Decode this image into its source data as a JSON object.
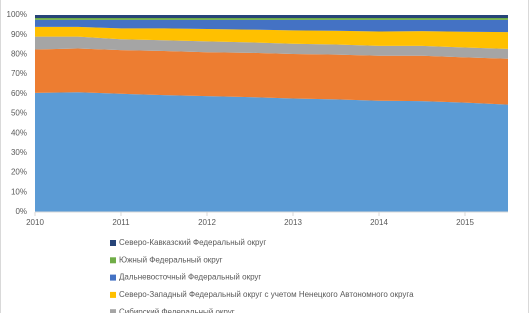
{
  "chart_data": {
    "type": "stacked_area",
    "x": [
      2010,
      2010.5,
      2011,
      2011.5,
      2012,
      2012.5,
      2013,
      2013.5,
      2014,
      2014.5,
      2015,
      2015.5
    ],
    "xlim": [
      2010,
      2015.5
    ],
    "xticks": [
      2010,
      2011,
      2012,
      2013,
      2014,
      2015
    ],
    "ylim": [
      0,
      100
    ],
    "yticks": [
      {
        "value": 0,
        "label": "0%"
      },
      {
        "value": 10,
        "label": "10%"
      },
      {
        "value": 20,
        "label": "20%"
      },
      {
        "value": 30,
        "label": "30%"
      },
      {
        "value": 40,
        "label": "40%"
      },
      {
        "value": 50,
        "label": "50%"
      },
      {
        "value": 60,
        "label": "60%"
      },
      {
        "value": 70,
        "label": "70%"
      },
      {
        "value": 80,
        "label": "80%"
      },
      {
        "value": 90,
        "label": "90%"
      },
      {
        "value": 100,
        "label": "100%"
      }
    ],
    "grid": false,
    "series": [
      {
        "color": "#5b9bd5",
        "values": [
          60.5,
          60.8,
          60,
          59.3,
          58.8,
          58.3,
          57.6,
          57.2,
          56.5,
          56.3,
          55.5,
          54.5
        ]
      },
      {
        "color": "#ed7d31",
        "values": [
          22,
          22.2,
          22.2,
          22.4,
          22.3,
          22.5,
          22.6,
          22.7,
          22.8,
          23,
          23,
          23.3
        ]
      },
      {
        "name": "Сибирский Федеральный округ",
        "color": "#a5a5a5",
        "values": [
          6.5,
          6,
          5.5,
          5.5,
          5.5,
          5.3,
          5.2,
          5.1,
          5,
          5,
          5,
          5
        ]
      },
      {
        "name": "Северо-Западный Федеральный округ с учетом Ненецкого Автономного округа",
        "color": "#ffc000",
        "values": [
          5,
          5,
          5.5,
          6,
          6.3,
          6.5,
          6.8,
          7,
          7.3,
          7.5,
          8,
          8.5
        ]
      },
      {
        "name": "Дальневосточный Федеральный округ",
        "color": "#4472c4",
        "values": [
          3.5,
          3.5,
          4.3,
          4.3,
          4.6,
          4.9,
          5.3,
          5.5,
          5.9,
          5.7,
          6,
          6.2
        ]
      },
      {
        "name": "Южный Федеральный округ",
        "color": "#70ad47",
        "values": [
          1,
          1,
          1,
          1,
          1,
          1,
          1,
          1,
          1,
          1,
          1,
          1
        ]
      },
      {
        "name": "Северо-Кавказский Федеральный округ",
        "color": "#264478",
        "values": [
          1.5,
          1.5,
          1.5,
          1.5,
          1.5,
          1.5,
          1.5,
          1.5,
          1.5,
          1.5,
          1.5,
          1.5
        ]
      }
    ]
  }
}
